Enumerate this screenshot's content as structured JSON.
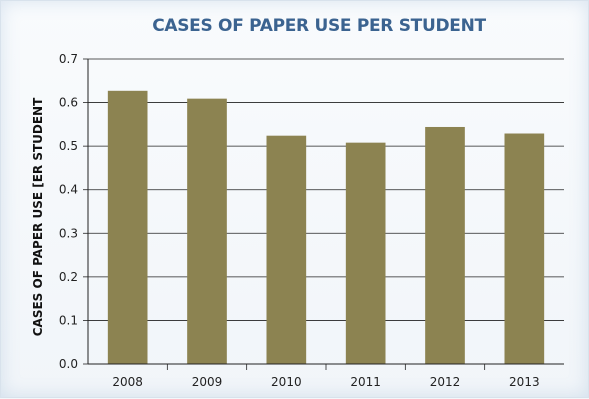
{
  "chart_data": {
    "type": "bar",
    "title": "CASES OF PAPER USE PER STUDENT",
    "xlabel": "",
    "ylabel": "CASES OF PAPER USE [ER STUDENT",
    "categories": [
      "2008",
      "2009",
      "2010",
      "2011",
      "2012",
      "2013"
    ],
    "values": [
      0.627,
      0.609,
      0.524,
      0.508,
      0.544,
      0.529
    ],
    "ylim": [
      0,
      0.7
    ],
    "yticks": [
      "0.0",
      "0.1",
      "0.2",
      "0.3",
      "0.4",
      "0.5",
      "0.6",
      "0.7"
    ],
    "grid": "horizontal",
    "legend": "none",
    "colors": {
      "bar": "#8c8351",
      "title": "#3b6390",
      "gridline": "#222222"
    }
  }
}
